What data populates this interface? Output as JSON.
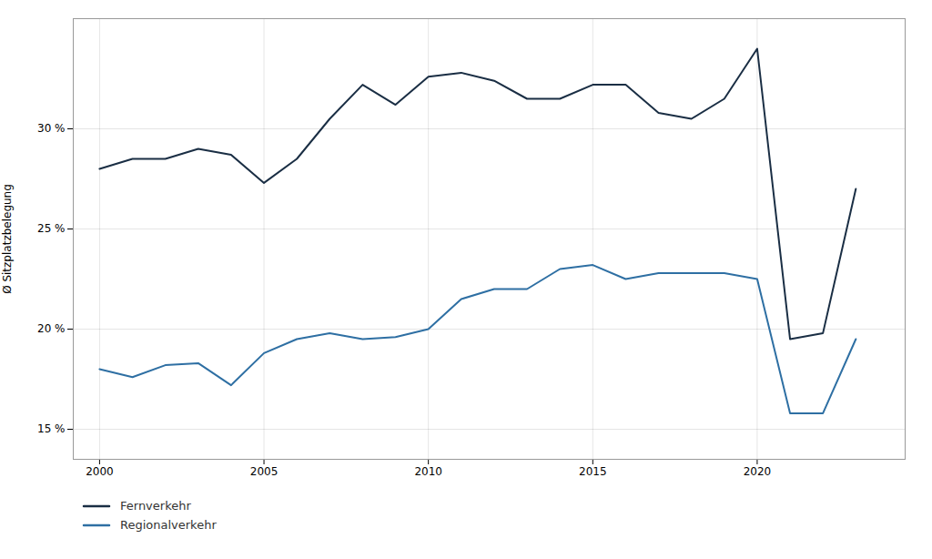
{
  "chart_data": {
    "type": "line",
    "x": [
      2000,
      2001,
      2002,
      2003,
      2004,
      2005,
      2006,
      2007,
      2008,
      2009,
      2010,
      2011,
      2012,
      2013,
      2014,
      2015,
      2016,
      2017,
      2018,
      2019,
      2020,
      2021,
      2022,
      2023
    ],
    "series": [
      {
        "name": "Fernverkehr",
        "color": "#1a2e44",
        "values": [
          28.0,
          28.5,
          28.5,
          29.0,
          28.7,
          27.3,
          28.5,
          30.5,
          32.2,
          31.2,
          32.6,
          32.8,
          32.4,
          31.5,
          31.5,
          32.2,
          32.2,
          30.8,
          30.5,
          31.5,
          34.0,
          19.5,
          19.8,
          27.0
        ]
      },
      {
        "name": "Regionalverkehr",
        "color": "#2e6fa3",
        "values": [
          18.0,
          17.6,
          18.2,
          18.3,
          17.2,
          18.8,
          19.5,
          19.8,
          19.5,
          19.6,
          20.0,
          21.5,
          22.0,
          22.0,
          23.0,
          23.2,
          22.5,
          22.8,
          22.8,
          22.8,
          22.5,
          15.8,
          15.8,
          19.5
        ]
      }
    ],
    "y_label": "Ø Sitzplatzbelegung",
    "xlim": [
      1999.2,
      2024.5
    ],
    "xticks": [
      2000,
      2005,
      2010,
      2015,
      2020
    ],
    "ylim": [
      13.5,
      35.5
    ],
    "yticks": [
      {
        "value": 15,
        "label": "15 %"
      },
      {
        "value": 20,
        "label": "20 %"
      },
      {
        "value": 25,
        "label": "25 %"
      },
      {
        "value": 30,
        "label": "30 %"
      }
    ],
    "grid": true,
    "legend": "bottom"
  }
}
